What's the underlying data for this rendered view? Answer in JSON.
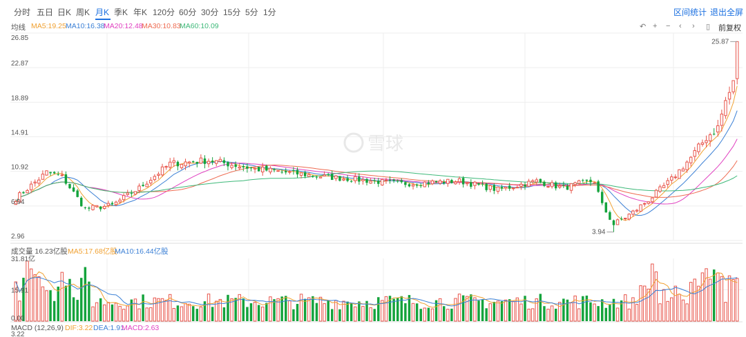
{
  "tabs": [
    {
      "label": "分时",
      "active": false
    },
    {
      "label": "五日",
      "active": false
    },
    {
      "label": "日K",
      "active": false
    },
    {
      "label": "周K",
      "active": false
    },
    {
      "label": "月K",
      "active": true
    },
    {
      "label": "季K",
      "active": false
    },
    {
      "label": "年K",
      "active": false
    },
    {
      "label": "120分",
      "active": false
    },
    {
      "label": "60分",
      "active": false
    },
    {
      "label": "30分",
      "active": false
    },
    {
      "label": "15分",
      "active": false
    },
    {
      "label": "5分",
      "active": false
    },
    {
      "label": "1分",
      "active": false
    }
  ],
  "top_right": {
    "interval_stats": "区间统计",
    "exit_fullscreen": "退出全屏"
  },
  "toolbar": {
    "icons": [
      "undo-icon",
      "plus-icon",
      "minus-icon",
      "left-icon",
      "right-icon",
      "pin-icon"
    ],
    "fq_label": "前复权"
  },
  "price_legend": {
    "label": "均线",
    "items": [
      {
        "text": "MA5:19.25",
        "color": "#f0a030"
      },
      {
        "text": "MA10:16.38",
        "color": "#3a7fd5"
      },
      {
        "text": "MA20:12.48",
        "color": "#e040c0"
      },
      {
        "text": "MA30:10.83",
        "color": "#ee6a50"
      },
      {
        "text": "MA60:10.09",
        "color": "#3cb878"
      }
    ]
  },
  "volume_legend": {
    "label": "成交量 16.23亿股",
    "items": [
      {
        "text": "MA5:17.68亿股",
        "color": "#f0a030"
      },
      {
        "text": "MA10:16.44亿股",
        "color": "#3a7fd5"
      }
    ]
  },
  "macd_legend": {
    "label": "MACD (12,26,9)",
    "items": [
      {
        "text": "DIF:3.22",
        "color": "#f0a030"
      },
      {
        "text": "DEA:1.91",
        "color": "#3a7fd5"
      },
      {
        "text": "MACD:2.63",
        "color": "#e040c0"
      }
    ]
  },
  "colors": {
    "up": "#e8544a",
    "down": "#14a33c",
    "grid": "#eeeeee"
  },
  "chart_data": [
    {
      "type": "candlestick",
      "title": "",
      "ylabel": "",
      "y_ticks": [
        "26.85",
        "22.87",
        "18.89",
        "14.91",
        "10.92",
        "6.94",
        "2.96"
      ],
      "ylim": [
        2.96,
        26.85
      ],
      "grid": true,
      "annotations": [
        {
          "text": "25.87",
          "kind": "max"
        },
        {
          "text": "3.94",
          "kind": "min"
        }
      ],
      "anchors": [
        [
          0,
          7.8
        ],
        [
          8,
          10.8
        ],
        [
          12,
          10.3
        ],
        [
          18,
          6.6
        ],
        [
          25,
          7.0
        ],
        [
          32,
          9.0
        ],
        [
          40,
          11.8
        ],
        [
          50,
          12.2
        ],
        [
          62,
          11.2
        ],
        [
          80,
          10.3
        ],
        [
          100,
          9.5
        ],
        [
          115,
          9.8
        ],
        [
          125,
          8.8
        ],
        [
          135,
          9.8
        ],
        [
          142,
          9.0
        ],
        [
          146,
          9.5
        ],
        [
          150,
          9.8
        ],
        [
          152,
          7.0
        ],
        [
          155,
          4.8
        ],
        [
          160,
          6.2
        ],
        [
          165,
          8.0
        ],
        [
          170,
          10.0
        ],
        [
          175,
          12.5
        ],
        [
          179,
          14.8
        ],
        [
          182,
          16.0
        ],
        [
          184,
          19.0
        ],
        [
          186,
          21.0
        ],
        [
          187,
          25.87
        ]
      ]
    },
    {
      "type": "bar",
      "title": "",
      "y_ticks": [
        "31.81亿",
        "15.91",
        "0.00"
      ],
      "ylim": [
        0,
        31.81
      ]
    },
    {
      "type": "bar",
      "title": "",
      "y_ticks": [
        "3.22"
      ]
    }
  ]
}
